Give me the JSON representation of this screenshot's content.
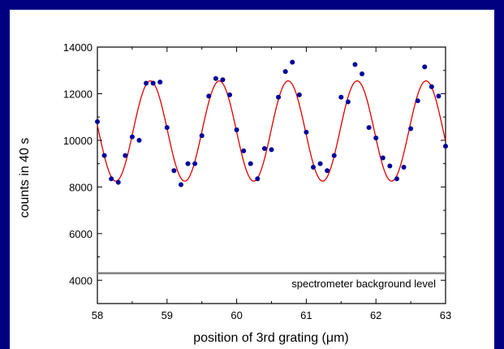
{
  "colors": {
    "frame": "#000080",
    "background": "#ffffff",
    "points": "#000099",
    "fit": "#e00000",
    "baseline": "#808080"
  },
  "chart_data": {
    "type": "scatter",
    "xlabel": "position of 3rd grating (μm)",
    "ylabel": "counts in 40 s",
    "xlim": [
      58,
      63
    ],
    "ylim": [
      3000,
      14000
    ],
    "x_ticks": [
      "58",
      "59",
      "60",
      "61",
      "62",
      "63"
    ],
    "y_ticks": [
      "4000",
      "6000",
      "8000",
      "10000",
      "12000",
      "14000"
    ],
    "grid": false,
    "series": [
      {
        "kind": "points",
        "x": [
          58.0,
          58.1,
          58.2,
          58.3,
          58.4,
          58.5,
          58.6,
          58.7,
          58.8,
          58.9,
          59.0,
          59.1,
          59.2,
          59.3,
          59.4,
          59.5,
          59.6,
          59.7,
          59.8,
          59.9,
          60.0,
          60.1,
          60.2,
          60.3,
          60.4,
          60.5,
          60.6,
          60.7,
          60.8,
          60.9,
          61.0,
          61.1,
          61.2,
          61.3,
          61.4,
          61.5,
          61.6,
          61.7,
          61.8,
          61.9,
          62.0,
          62.1,
          62.2,
          62.3,
          62.4,
          62.5,
          62.6,
          62.7,
          62.8,
          62.9,
          63.0
        ],
        "y": [
          10800,
          9350,
          8350,
          8200,
          9350,
          10150,
          10000,
          12450,
          12450,
          12500,
          10550,
          8700,
          8100,
          9000,
          9000,
          10200,
          11900,
          12650,
          12600,
          11950,
          10450,
          9550,
          9000,
          8350,
          9650,
          9600,
          11850,
          12950,
          13350,
          11950,
          10350,
          8850,
          9000,
          8700,
          9350,
          11850,
          11650,
          13250,
          12850,
          10550,
          10100,
          9250,
          8900,
          8350,
          8850,
          10500,
          11700,
          13150,
          12300,
          11900,
          9750
        ]
      },
      {
        "kind": "fit",
        "offset": 10400,
        "amplitude": 2150,
        "period": 0.99,
        "peak_x": 58.76
      },
      {
        "kind": "hline",
        "y": 4300,
        "label": "spectrometer background level"
      }
    ]
  }
}
